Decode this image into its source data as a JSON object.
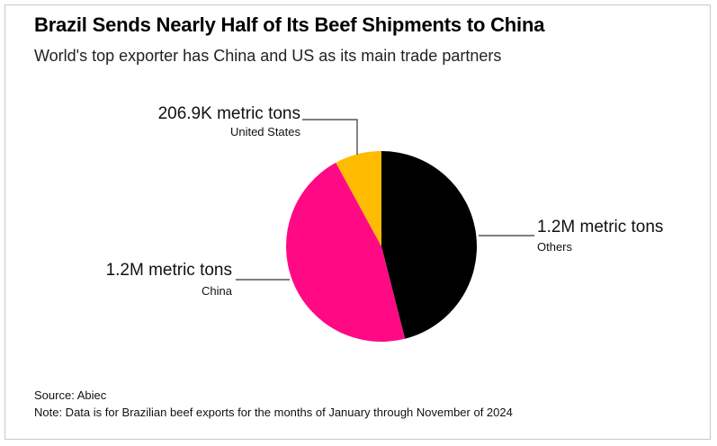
{
  "title": "Brazil Sends Nearly Half of Its Beef Shipments to China",
  "subtitle": "World's top exporter has China and US as its main trade partners",
  "source": "Source: Abiec",
  "note": "Note: Data is for Brazilian beef exports for the months of January through November of 2024",
  "chart_data": {
    "type": "pie",
    "slices": [
      {
        "name": "Others",
        "value": 1.2,
        "label": "1.2M metric tons",
        "color": "#000000"
      },
      {
        "name": "China",
        "value": 1.2,
        "label": "1.2M metric tons",
        "color": "#ff0a84"
      },
      {
        "name": "United States",
        "value": 0.2069,
        "label": "206.9K metric tons",
        "color": "#ffbb00"
      }
    ],
    "unit": "metric tons",
    "start_angle": "top",
    "direction": "clockwise"
  }
}
